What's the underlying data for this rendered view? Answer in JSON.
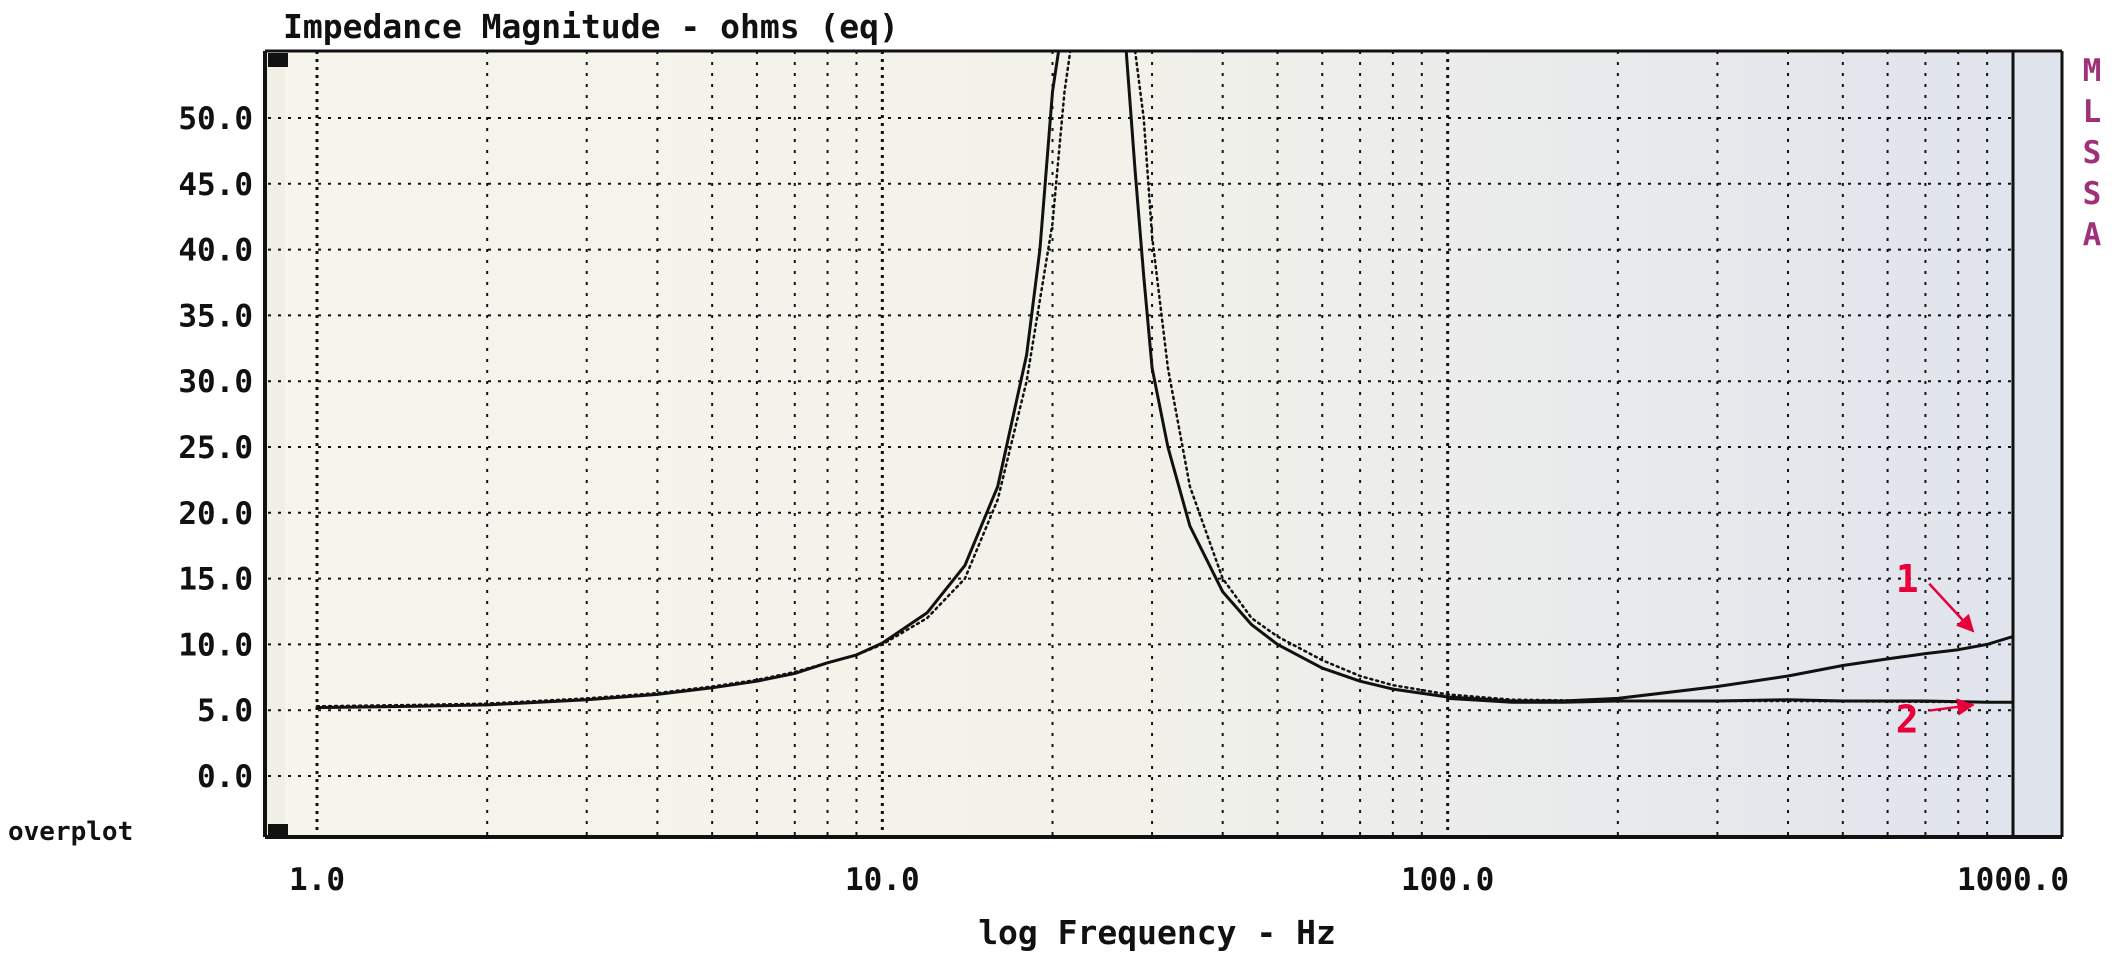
{
  "chart_data": {
    "type": "line",
    "title": "Impedance Magnitude - ohms (eq)",
    "xlabel": "log Frequency - Hz",
    "ylabel": "",
    "x_scale": "log",
    "xlim": [
      1.0,
      1000.0
    ],
    "ylim": [
      -4.5,
      56.0
    ],
    "x_ticks": [
      {
        "value": 1,
        "label": "1.0"
      },
      {
        "value": 10,
        "label": "10.0"
      },
      {
        "value": 100,
        "label": "100.0"
      },
      {
        "value": 1000,
        "label": "1000.0"
      }
    ],
    "y_ticks": [
      {
        "value": 0,
        "label": "0.0"
      },
      {
        "value": 5,
        "label": "5.0"
      },
      {
        "value": 10,
        "label": "10.0"
      },
      {
        "value": 15,
        "label": "15.0"
      },
      {
        "value": 20,
        "label": "20.0"
      },
      {
        "value": 25,
        "label": "25.0"
      },
      {
        "value": 30,
        "label": "30.0"
      },
      {
        "value": 35,
        "label": "35.0"
      },
      {
        "value": 40,
        "label": "40.0"
      },
      {
        "value": 45,
        "label": "45.0"
      },
      {
        "value": 50,
        "label": "50.0"
      }
    ],
    "grid": true,
    "series": [
      {
        "style": "solid",
        "points": [
          [
            1,
            5.2
          ],
          [
            1.5,
            5.3
          ],
          [
            2,
            5.4
          ],
          [
            3,
            5.8
          ],
          [
            4,
            6.2
          ],
          [
            5,
            6.7
          ],
          [
            6,
            7.2
          ],
          [
            7,
            7.8
          ],
          [
            8,
            8.6
          ],
          [
            9,
            9.2
          ],
          [
            10,
            10.1
          ],
          [
            12,
            12.4
          ],
          [
            14,
            16.0
          ],
          [
            16,
            22.0
          ],
          [
            18,
            32.0
          ],
          [
            19,
            40.0
          ],
          [
            20,
            52.0
          ],
          [
            20.5,
            56
          ],
          [
            27,
            56
          ],
          [
            28,
            46.0
          ],
          [
            29,
            38.0
          ],
          [
            30,
            31.0
          ],
          [
            32,
            25.0
          ],
          [
            35,
            19.0
          ],
          [
            40,
            14.0
          ],
          [
            45,
            11.5
          ],
          [
            50,
            10.0
          ],
          [
            60,
            8.2
          ],
          [
            70,
            7.2
          ],
          [
            80,
            6.6
          ],
          [
            100,
            6.0
          ],
          [
            130,
            5.7
          ],
          [
            160,
            5.7
          ],
          [
            200,
            5.9
          ],
          [
            300,
            6.8
          ],
          [
            400,
            7.6
          ],
          [
            500,
            8.4
          ],
          [
            600,
            8.9
          ],
          [
            700,
            9.3
          ],
          [
            800,
            9.6
          ],
          [
            900,
            10.0
          ],
          [
            1000,
            10.6
          ]
        ]
      },
      {
        "style": "solid",
        "points": [
          [
            100,
            5.9
          ],
          [
            130,
            5.6
          ],
          [
            160,
            5.6
          ],
          [
            200,
            5.7
          ],
          [
            300,
            5.7
          ],
          [
            400,
            5.8
          ],
          [
            500,
            5.7
          ],
          [
            700,
            5.7
          ],
          [
            900,
            5.6
          ],
          [
            1000,
            5.6
          ]
        ]
      },
      {
        "style": "dotted",
        "points": [
          [
            1,
            5.3
          ],
          [
            1.5,
            5.4
          ],
          [
            2,
            5.5
          ],
          [
            3,
            5.9
          ],
          [
            4,
            6.3
          ],
          [
            5,
            6.8
          ],
          [
            6,
            7.3
          ],
          [
            7,
            7.9
          ],
          [
            8,
            8.6
          ],
          [
            9,
            9.2
          ],
          [
            10,
            10.0
          ],
          [
            12,
            12.0
          ],
          [
            14,
            15.0
          ],
          [
            16,
            21.0
          ],
          [
            18,
            30.0
          ],
          [
            20,
            42.0
          ],
          [
            21,
            52.0
          ],
          [
            21.5,
            56
          ],
          [
            28,
            56
          ],
          [
            29,
            50.0
          ],
          [
            30,
            41.0
          ],
          [
            32,
            31.0
          ],
          [
            35,
            22.0
          ],
          [
            40,
            15.0
          ],
          [
            45,
            12.0
          ],
          [
            50,
            10.6
          ],
          [
            60,
            8.8
          ],
          [
            70,
            7.6
          ],
          [
            80,
            6.9
          ],
          [
            100,
            6.2
          ],
          [
            130,
            5.8
          ],
          [
            200,
            5.7
          ],
          [
            400,
            5.7
          ],
          [
            1000,
            5.6
          ]
        ]
      }
    ],
    "annotations": [
      {
        "text": "1",
        "color": "#e8003a",
        "x": 650,
        "y": 14.0,
        "arrow_to": [
          850,
          11.0
        ]
      },
      {
        "text": "2",
        "color": "#e8003a",
        "x": 650,
        "y": 3.3,
        "arrow_to": [
          850,
          5.4
        ]
      }
    ]
  },
  "side_label": [
    "M",
    "L",
    "S",
    "S",
    "A"
  ],
  "overplot_label": "overplot",
  "colors": {
    "trace": "#111111",
    "grid": "#111111",
    "plot_bg_left": "#f6f5ec",
    "plot_bg_right": "#dfe3ec",
    "label": "#111111",
    "side_label": "#a0307a",
    "annotation": "#e8003a"
  }
}
